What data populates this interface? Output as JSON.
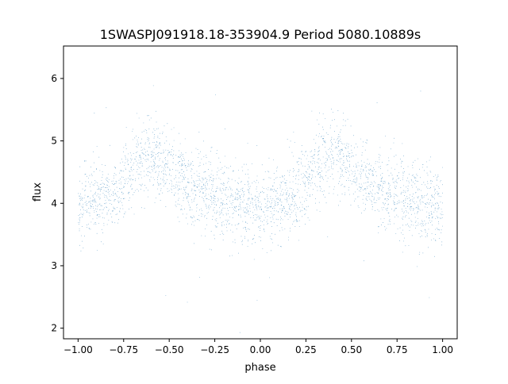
{
  "chart_data": {
    "type": "scatter",
    "title": "1SWASPJ091918.18-353904.9 Period 5080.10889s",
    "xlabel": "phase",
    "ylabel": "flux",
    "xlim": [
      -1.08,
      1.08
    ],
    "ylim": [
      1.83,
      6.52
    ],
    "x_ticks": [
      -1.0,
      -0.75,
      -0.5,
      -0.25,
      0.0,
      0.25,
      0.5,
      0.75,
      1.0
    ],
    "x_tick_labels": [
      "−1.00",
      "−0.75",
      "−0.50",
      "−0.25",
      "0.00",
      "0.25",
      "0.50",
      "0.75",
      "1.00"
    ],
    "y_ticks": [
      2,
      3,
      4,
      5,
      6
    ],
    "y_tick_labels": [
      "2",
      "3",
      "4",
      "5",
      "6"
    ],
    "grid": false,
    "legend": "none",
    "point_color": "#1f77b4",
    "curve": {
      "phase": [
        -1.0,
        -0.9,
        -0.8,
        -0.7,
        -0.6,
        -0.5,
        -0.4,
        -0.3,
        -0.2,
        -0.1,
        0.0,
        0.1,
        0.2,
        0.3,
        0.4,
        0.5,
        0.6,
        0.7,
        0.8,
        0.9,
        1.0
      ],
      "mean_flux": [
        3.95,
        4.0,
        4.15,
        4.6,
        4.8,
        4.55,
        4.3,
        4.15,
        4.05,
        3.98,
        3.95,
        4.0,
        4.15,
        4.6,
        4.8,
        4.55,
        4.3,
        4.15,
        4.05,
        3.98,
        3.95
      ],
      "scatter_sigma": 0.3
    },
    "n_points": 26000
  }
}
